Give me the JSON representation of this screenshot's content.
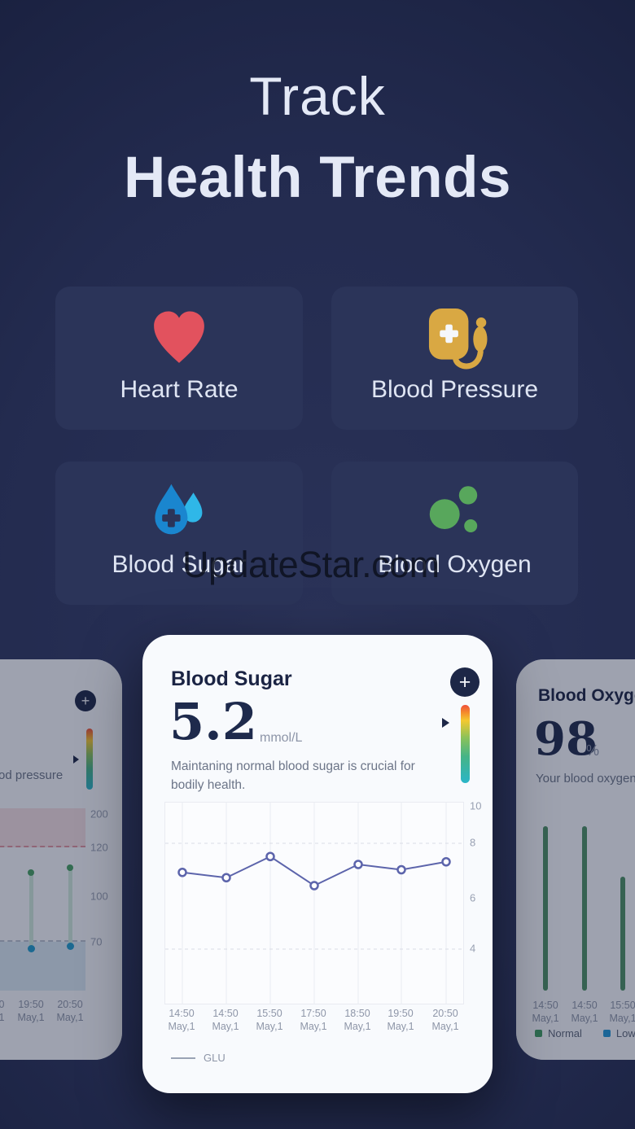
{
  "hero": {
    "line1": "Track",
    "line2": "Health Trends"
  },
  "watermark": "UpdateStar.com",
  "tiles": [
    {
      "label": "Heart Rate",
      "icon": "heart-icon",
      "color": "#e2525e"
    },
    {
      "label": "Blood Pressure",
      "icon": "blood-pressure-cuff-icon",
      "color": "#d9a843"
    },
    {
      "label": "Blood Sugar",
      "icon": "blood-drops-icon",
      "color": "#1a86cf",
      "color2": "#2fb7e8"
    },
    {
      "label": "Blood Oxygen",
      "icon": "oxygen-bubbles-icon",
      "color": "#58a75c"
    }
  ],
  "blood_sugar_card": {
    "title": "Blood Sugar",
    "add_button_label": "+",
    "value": "5.2",
    "unit": "mmol/L",
    "description": "Maintaning normal blood sugar is crucial for bodily health.",
    "legend": "GLU"
  },
  "blood_pressure_card": {
    "add_button_label": "+",
    "description_fragment": "od pressure",
    "x_times": [
      "0",
      "19:50",
      "20:50"
    ],
    "x_dates": [
      "1",
      "May,1",
      "May,1"
    ]
  },
  "blood_oxygen_card": {
    "title": "Blood Oxygen",
    "value": "98",
    "unit": "%",
    "description": "Your blood oxygen",
    "x_times": [
      "14:50",
      "14:50",
      "15:50"
    ],
    "x_dates": [
      "May,1",
      "May,1",
      "May,1"
    ],
    "legend": [
      {
        "label": "Normal",
        "color": "#3f9d5f"
      },
      {
        "label": "Low",
        "color": "#2196d6"
      }
    ]
  },
  "chart_data": [
    {
      "id": "blood-sugar-trend",
      "type": "line",
      "title": "Blood Sugar",
      "x_labels": [
        "14:50",
        "14:50",
        "15:50",
        "17:50",
        "18:50",
        "19:50",
        "20:50"
      ],
      "x_sublabel": "May,1",
      "series": [
        {
          "name": "GLU",
          "values": [
            6.9,
            6.7,
            7.5,
            6.4,
            7.2,
            7.0,
            7.3
          ]
        }
      ],
      "y_ticks": [
        10,
        8,
        6,
        4
      ],
      "ylim": [
        2,
        10
      ],
      "grid": true,
      "legend_position": "bottom-left",
      "line_color": "#5c64ab"
    },
    {
      "id": "blood-pressure-trend",
      "type": "range-bar",
      "categories": [
        "19:50",
        "20:50"
      ],
      "series": [
        {
          "name": "high",
          "values": [
            110,
            112
          ]
        },
        {
          "name": "low",
          "values": [
            65,
            67
          ]
        }
      ],
      "y_ticks": [
        200,
        120,
        100,
        70
      ],
      "bands": [
        {
          "range": [
            120,
            200
          ],
          "color": "#f5d7d9"
        },
        {
          "range": [
            null,
            70
          ],
          "color": "#d3e5f1"
        }
      ]
    },
    {
      "id": "blood-oxygen-trend",
      "type": "bar",
      "categories": [
        "14:50",
        "14:50",
        "15:50"
      ],
      "values": [
        98,
        98,
        95
      ],
      "legend": [
        "Normal",
        "Low"
      ]
    }
  ]
}
